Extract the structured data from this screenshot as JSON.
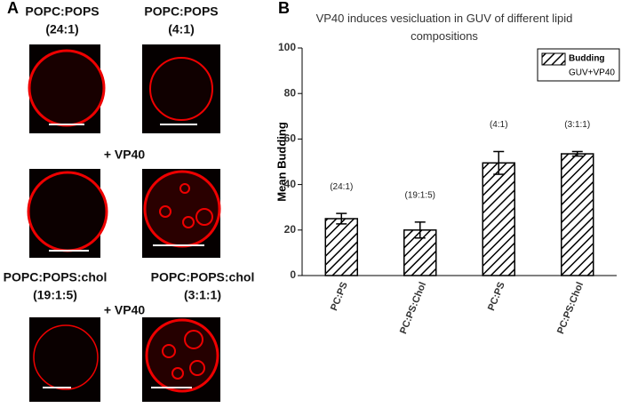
{
  "panel_a": {
    "label": "A",
    "titles": [
      [
        "POPC:POPS",
        "(24:1)"
      ],
      [
        "POPC:POPS",
        "(4:1)"
      ],
      [
        "POPC:POPS:chol",
        "(19:1:5)"
      ],
      [
        "POPC:POPS:chol",
        "(3:1:1)"
      ]
    ],
    "treatments": [
      "+ VP40",
      "+ VP40"
    ]
  },
  "chart_data": {
    "type": "bar",
    "panel_label": "B",
    "title": "VP40 induces vesicluation in GUV of different lipid compositions",
    "y_label": "Mean Budding",
    "categories": [
      "PC:PS",
      "PC:PS:Chol",
      "PC:PS",
      "PC:PS:Chol"
    ],
    "series": [
      {
        "name": "Budding",
        "color": "#000000",
        "values": [
          25,
          20,
          49.5,
          53.5
        ],
        "errors": [
          2.3,
          3.5,
          5,
          1
        ]
      }
    ],
    "legend_subtitle": "GUV+VP40",
    "bar_annotations": [
      "(24:1)",
      "(19:1:5)",
      "(4:1)",
      "(3:1:1)"
    ],
    "ylim": [
      0,
      100
    ],
    "yticks": [
      0,
      20,
      40,
      60,
      80,
      100
    ],
    "legend": "top-right",
    "grid": false
  }
}
